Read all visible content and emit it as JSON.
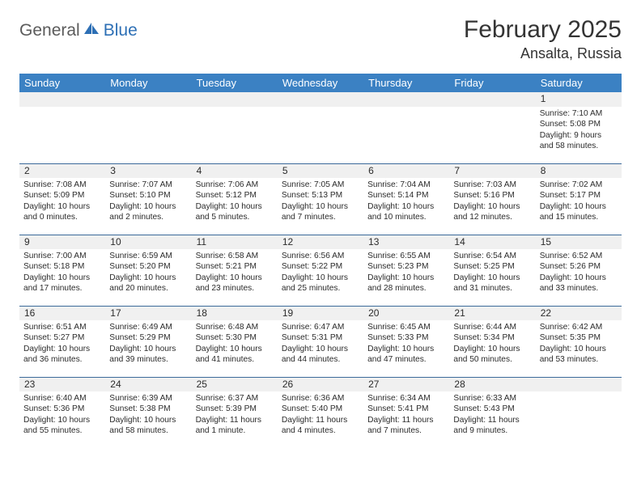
{
  "logo": {
    "text1": "General",
    "text2": "Blue"
  },
  "title": "February 2025",
  "location": "Ansalta, Russia",
  "colors": {
    "header_bg": "#3b81c3",
    "header_text": "#ffffff",
    "daynum_bg": "#f0f0f0",
    "row_border": "#3b6a9a",
    "logo_gray": "#5b5b5b",
    "logo_blue": "#2d6fb5",
    "body_text": "#2b2b2b",
    "title_text": "#343434",
    "page_bg": "#ffffff"
  },
  "day_headers": [
    "Sunday",
    "Monday",
    "Tuesday",
    "Wednesday",
    "Thursday",
    "Friday",
    "Saturday"
  ],
  "weeks": [
    {
      "nums": [
        "",
        "",
        "",
        "",
        "",
        "",
        "1"
      ],
      "cells": [
        [],
        [],
        [],
        [],
        [],
        [],
        [
          "Sunrise: 7:10 AM",
          "Sunset: 5:08 PM",
          "Daylight: 9 hours",
          "and 58 minutes."
        ]
      ]
    },
    {
      "nums": [
        "2",
        "3",
        "4",
        "5",
        "6",
        "7",
        "8"
      ],
      "cells": [
        [
          "Sunrise: 7:08 AM",
          "Sunset: 5:09 PM",
          "Daylight: 10 hours",
          "and 0 minutes."
        ],
        [
          "Sunrise: 7:07 AM",
          "Sunset: 5:10 PM",
          "Daylight: 10 hours",
          "and 2 minutes."
        ],
        [
          "Sunrise: 7:06 AM",
          "Sunset: 5:12 PM",
          "Daylight: 10 hours",
          "and 5 minutes."
        ],
        [
          "Sunrise: 7:05 AM",
          "Sunset: 5:13 PM",
          "Daylight: 10 hours",
          "and 7 minutes."
        ],
        [
          "Sunrise: 7:04 AM",
          "Sunset: 5:14 PM",
          "Daylight: 10 hours",
          "and 10 minutes."
        ],
        [
          "Sunrise: 7:03 AM",
          "Sunset: 5:16 PM",
          "Daylight: 10 hours",
          "and 12 minutes."
        ],
        [
          "Sunrise: 7:02 AM",
          "Sunset: 5:17 PM",
          "Daylight: 10 hours",
          "and 15 minutes."
        ]
      ]
    },
    {
      "nums": [
        "9",
        "10",
        "11",
        "12",
        "13",
        "14",
        "15"
      ],
      "cells": [
        [
          "Sunrise: 7:00 AM",
          "Sunset: 5:18 PM",
          "Daylight: 10 hours",
          "and 17 minutes."
        ],
        [
          "Sunrise: 6:59 AM",
          "Sunset: 5:20 PM",
          "Daylight: 10 hours",
          "and 20 minutes."
        ],
        [
          "Sunrise: 6:58 AM",
          "Sunset: 5:21 PM",
          "Daylight: 10 hours",
          "and 23 minutes."
        ],
        [
          "Sunrise: 6:56 AM",
          "Sunset: 5:22 PM",
          "Daylight: 10 hours",
          "and 25 minutes."
        ],
        [
          "Sunrise: 6:55 AM",
          "Sunset: 5:23 PM",
          "Daylight: 10 hours",
          "and 28 minutes."
        ],
        [
          "Sunrise: 6:54 AM",
          "Sunset: 5:25 PM",
          "Daylight: 10 hours",
          "and 31 minutes."
        ],
        [
          "Sunrise: 6:52 AM",
          "Sunset: 5:26 PM",
          "Daylight: 10 hours",
          "and 33 minutes."
        ]
      ]
    },
    {
      "nums": [
        "16",
        "17",
        "18",
        "19",
        "20",
        "21",
        "22"
      ],
      "cells": [
        [
          "Sunrise: 6:51 AM",
          "Sunset: 5:27 PM",
          "Daylight: 10 hours",
          "and 36 minutes."
        ],
        [
          "Sunrise: 6:49 AM",
          "Sunset: 5:29 PM",
          "Daylight: 10 hours",
          "and 39 minutes."
        ],
        [
          "Sunrise: 6:48 AM",
          "Sunset: 5:30 PM",
          "Daylight: 10 hours",
          "and 41 minutes."
        ],
        [
          "Sunrise: 6:47 AM",
          "Sunset: 5:31 PM",
          "Daylight: 10 hours",
          "and 44 minutes."
        ],
        [
          "Sunrise: 6:45 AM",
          "Sunset: 5:33 PM",
          "Daylight: 10 hours",
          "and 47 minutes."
        ],
        [
          "Sunrise: 6:44 AM",
          "Sunset: 5:34 PM",
          "Daylight: 10 hours",
          "and 50 minutes."
        ],
        [
          "Sunrise: 6:42 AM",
          "Sunset: 5:35 PM",
          "Daylight: 10 hours",
          "and 53 minutes."
        ]
      ]
    },
    {
      "nums": [
        "23",
        "24",
        "25",
        "26",
        "27",
        "28",
        ""
      ],
      "cells": [
        [
          "Sunrise: 6:40 AM",
          "Sunset: 5:36 PM",
          "Daylight: 10 hours",
          "and 55 minutes."
        ],
        [
          "Sunrise: 6:39 AM",
          "Sunset: 5:38 PM",
          "Daylight: 10 hours",
          "and 58 minutes."
        ],
        [
          "Sunrise: 6:37 AM",
          "Sunset: 5:39 PM",
          "Daylight: 11 hours",
          "and 1 minute."
        ],
        [
          "Sunrise: 6:36 AM",
          "Sunset: 5:40 PM",
          "Daylight: 11 hours",
          "and 4 minutes."
        ],
        [
          "Sunrise: 6:34 AM",
          "Sunset: 5:41 PM",
          "Daylight: 11 hours",
          "and 7 minutes."
        ],
        [
          "Sunrise: 6:33 AM",
          "Sunset: 5:43 PM",
          "Daylight: 11 hours",
          "and 9 minutes."
        ],
        []
      ]
    }
  ]
}
